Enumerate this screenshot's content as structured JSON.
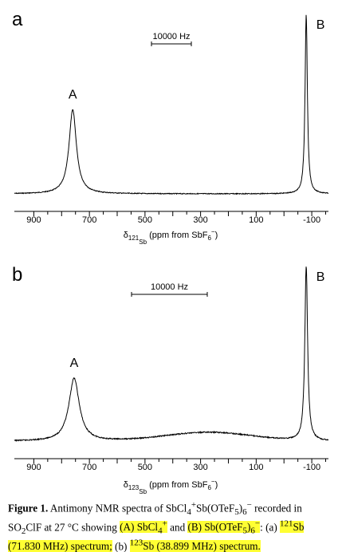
{
  "chart_data": [
    {
      "type": "line",
      "panel": "a",
      "xlabel": {
        "symbol": "δ",
        "sub": "121",
        "subsub": "Sb",
        "rest": "(ppm from SbF",
        "rest_sub": "6",
        "rest_sup": "−",
        "end": ")"
      },
      "xticks": [
        900,
        700,
        500,
        300,
        100,
        -100
      ],
      "xlim": [
        970,
        -160
      ],
      "scale_bar": "10000 Hz",
      "peaks": [
        {
          "label": "A",
          "center": 760,
          "height": 0.47,
          "width": 32
        },
        {
          "label": "B",
          "center": -80,
          "height": 1.0,
          "width": 10
        }
      ]
    },
    {
      "type": "line",
      "panel": "b",
      "xlabel": {
        "symbol": "δ",
        "sub": "123",
        "subsub": "Sb",
        "rest": "(ppm from SbF",
        "rest_sub": "6",
        "rest_sup": "−",
        "end": ")"
      },
      "xticks": [
        900,
        700,
        500,
        300,
        100,
        -100
      ],
      "xlim": [
        970,
        -160
      ],
      "scale_bar": "10000 Hz",
      "peaks": [
        {
          "label": "A",
          "center": 755,
          "height": 0.36,
          "width": 45
        },
        {
          "label": "B",
          "center": -80,
          "height": 1.0,
          "width": 12
        }
      ],
      "broad_hump": {
        "center": 270,
        "height": 0.05,
        "width": 220
      }
    }
  ],
  "caption": {
    "bold": "Figure 1.",
    "t1": "Antimony NMR spectra of SbCl",
    "t1_sub": "4",
    "t1_sup": "+",
    "t2": "Sb(OTeF",
    "t2_sub": "5",
    "t3": ")",
    "t3_sub": "6",
    "t3_sup": "−",
    "t4": "recorded in SO",
    "t4_sub": "2",
    "t5": "ClF at 27 °C showing",
    "hl1": "(A) SbCl",
    "hl1_sub": "4",
    "hl1_sup": "+",
    "t6": "and",
    "hl2": "(B) Sb(OTeF",
    "hl2_sub": "5",
    "hl2_b": ")",
    "hl2_sub2": "6",
    "hl2_sup": "−",
    "t7": ": (a)",
    "hl3_sup": "121",
    "hl3": "Sb",
    "hl4": "(71.830 MHz) spectrum;",
    "t8": "(b)",
    "hl5_sup": "123",
    "hl5": "Sb (38.899 MHz) spectrum."
  }
}
